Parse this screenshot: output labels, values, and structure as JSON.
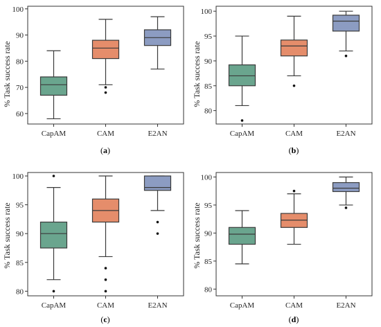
{
  "chart_data": [
    {
      "type": "box",
      "caption_prefix": "(",
      "caption_letter": "a",
      "caption_suffix": ")",
      "ylabel": "% Task success rate",
      "categories": [
        "CapAM",
        "CAM",
        "E2AN"
      ],
      "ylim": [
        56,
        101
      ],
      "yticks": [
        60,
        70,
        80,
        90,
        100
      ],
      "colors": [
        "#6aa58e",
        "#e58d6b",
        "#8c9cc2"
      ],
      "boxes": [
        {
          "name": "CapAM",
          "whislo": 58,
          "q1": 67,
          "med": 71,
          "q3": 74,
          "whishi": 84,
          "fliers": []
        },
        {
          "name": "CAM",
          "whislo": 71,
          "q1": 81,
          "med": 85,
          "q3": 88,
          "whishi": 96,
          "fliers": [
            70,
            68
          ]
        },
        {
          "name": "E2AN",
          "whislo": 77,
          "q1": 86,
          "med": 89,
          "q3": 92,
          "whishi": 97,
          "fliers": []
        }
      ]
    },
    {
      "type": "box",
      "caption_prefix": "(",
      "caption_letter": "b",
      "caption_suffix": ")",
      "ylabel": "% Task success rate",
      "categories": [
        "CapAM",
        "CAM",
        "E2AN"
      ],
      "ylim": [
        77.3,
        101
      ],
      "yticks": [
        80,
        85,
        90,
        95,
        100
      ],
      "colors": [
        "#6aa58e",
        "#e58d6b",
        "#8c9cc2"
      ],
      "boxes": [
        {
          "name": "CapAM",
          "whislo": 81,
          "q1": 85,
          "med": 87,
          "q3": 89.2,
          "whishi": 95,
          "fliers": [
            78
          ]
        },
        {
          "name": "CAM",
          "whislo": 87,
          "q1": 91,
          "med": 93,
          "q3": 94.2,
          "whishi": 99,
          "fliers": [
            85
          ]
        },
        {
          "name": "E2AN",
          "whislo": 92,
          "q1": 96,
          "med": 98,
          "q3": 99.2,
          "whishi": 100,
          "fliers": [
            91
          ]
        }
      ]
    },
    {
      "type": "box",
      "caption_prefix": "(",
      "caption_letter": "c",
      "caption_suffix": ")",
      "ylabel": "% Task success rate",
      "categories": [
        "CapAM",
        "CAM",
        "E2AN"
      ],
      "ylim": [
        79.2,
        100.6
      ],
      "yticks": [
        80,
        85,
        90,
        95,
        100
      ],
      "colors": [
        "#6aa58e",
        "#e58d6b",
        "#8c9cc2"
      ],
      "boxes": [
        {
          "name": "CapAM",
          "whislo": 82,
          "q1": 87.5,
          "med": 90,
          "q3": 92,
          "whishi": 98,
          "fliers": [
            100,
            80
          ]
        },
        {
          "name": "CAM",
          "whislo": 86,
          "q1": 92,
          "med": 94,
          "q3": 96,
          "whishi": 100,
          "fliers": [
            84,
            82,
            80
          ]
        },
        {
          "name": "E2AN",
          "whislo": 94,
          "q1": 97.5,
          "med": 98,
          "q3": 100,
          "whishi": 100,
          "fliers": [
            92,
            90
          ]
        }
      ]
    },
    {
      "type": "box",
      "caption_prefix": "(",
      "caption_letter": "d",
      "caption_suffix": ")",
      "ylabel": "% Task success rate",
      "categories": [
        "CapAM",
        "CAM",
        "E2AN"
      ],
      "ylim": [
        78.8,
        100.8
      ],
      "yticks": [
        80,
        85,
        90,
        95,
        100
      ],
      "colors": [
        "#6aa58e",
        "#e58d6b",
        "#8c9cc2"
      ],
      "boxes": [
        {
          "name": "CapAM",
          "whislo": 84.5,
          "q1": 88,
          "med": 89.8,
          "q3": 91,
          "whishi": 94,
          "fliers": []
        },
        {
          "name": "CAM",
          "whislo": 88,
          "q1": 91,
          "med": 92.3,
          "q3": 93.5,
          "whishi": 97,
          "fliers": [
            97.5
          ]
        },
        {
          "name": "E2AN",
          "whislo": 95,
          "q1": 97.4,
          "med": 98,
          "q3": 99,
          "whishi": 100,
          "fliers": [
            94.5
          ]
        }
      ]
    }
  ]
}
